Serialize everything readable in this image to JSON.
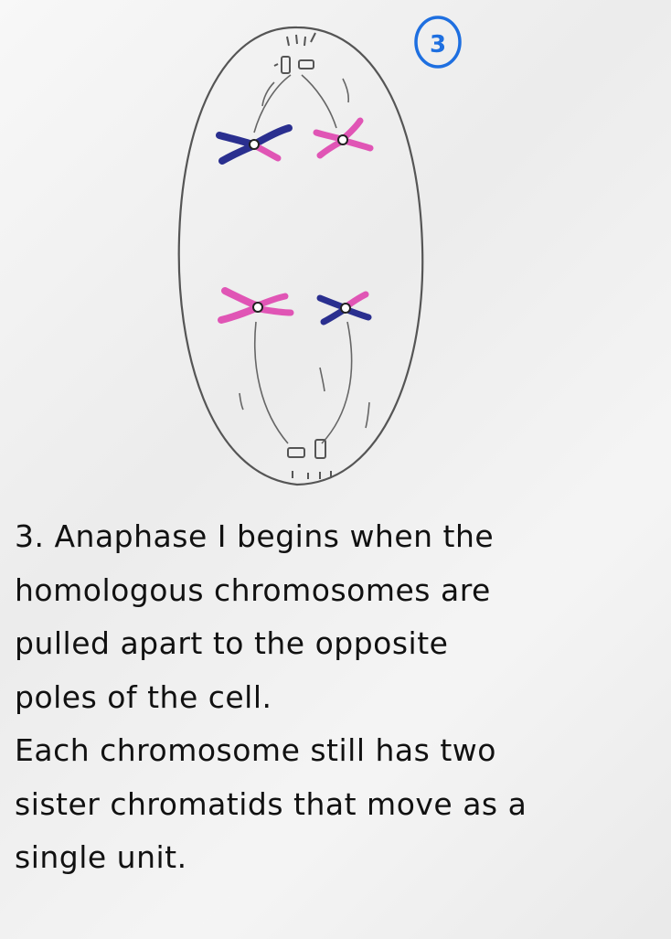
{
  "page_number": "3",
  "caption_lines": [
    "3. Anaphase I begins when the",
    "homologous chromosomes are",
    "pulled apart to the opposite",
    "poles of the cell.",
    "Each chromosome still has two",
    "sister chromatids that move as a",
    "single unit."
  ],
  "colors": {
    "ink": "#4a4a4a",
    "chromosome_blue": "#2a2f8f",
    "chromosome_pink": "#e055b5",
    "page_number_ring": "#1e6fe0"
  }
}
